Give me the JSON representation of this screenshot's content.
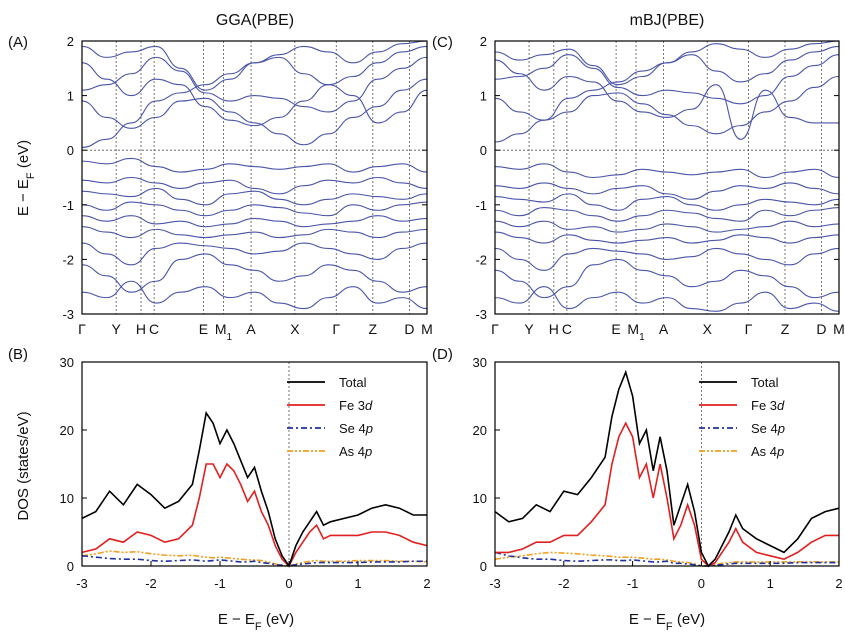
{
  "figure": {
    "panel_titles": [
      "GGA(PBE)",
      "mBJ(PBE)"
    ],
    "panel_labels": [
      "(A)",
      "(B)",
      "(C)",
      "(D)"
    ],
    "band_ylabel_main": "E − E",
    "band_ylabel_sub": "F",
    "band_ylabel_unit": " (eV)",
    "dos_ylabel": "DOS (states/eV)",
    "dos_xlabel_main": "E − E",
    "dos_xlabel_sub": "F",
    "dos_xlabel_unit": " (eV)"
  },
  "chart_data": [
    {
      "panel": "A",
      "type": "line",
      "title": "GGA(PBE)",
      "ylabel": "E − EF (eV)",
      "ylim": [
        -3,
        2
      ],
      "yticks": [
        -3,
        -2,
        -1,
        0,
        1,
        2
      ],
      "kpoints": [
        {
          "label": "Γ",
          "sub": "",
          "pos": 0
        },
        {
          "label": "Y",
          "sub": "",
          "pos": 0.099
        },
        {
          "label": "H",
          "sub": "",
          "pos": 0.171
        },
        {
          "label": "C",
          "sub": "",
          "pos": 0.209
        },
        {
          "label": "E",
          "sub": "",
          "pos": 0.352
        },
        {
          "label": "M",
          "sub": "1",
          "pos": 0.41
        },
        {
          "label": "A",
          "sub": "",
          "pos": 0.49
        },
        {
          "label": "X",
          "sub": "",
          "pos": 0.617
        },
        {
          "label": "Γ",
          "sub": "",
          "pos": 0.737
        },
        {
          "label": "Z",
          "sub": "",
          "pos": 0.843
        },
        {
          "label": "D",
          "sub": "",
          "pos": 0.949
        },
        {
          "label": "M",
          "sub": "",
          "pos": 1
        }
      ],
      "grid": "dotted vertical lines at k-points",
      "band_color": "#4a55a8",
      "bands": [
        [
          0.05,
          0.2,
          0.5,
          0.9,
          1.05,
          1.2,
          1.4,
          1.6,
          1.75,
          1.9,
          1.8,
          1.6,
          1.8,
          1.95,
          2.0
        ],
        [
          1.9,
          1.7,
          1.8,
          1.9,
          1.5,
          1.1,
          1.3,
          1.6,
          1.7,
          1.4,
          1.2,
          1.35,
          1.6,
          1.8,
          1.9
        ],
        [
          1.1,
          1.2,
          1.4,
          1.7,
          1.45,
          1.05,
          0.9,
          1.0,
          0.95,
          0.8,
          0.7,
          0.9,
          1.3,
          1.5,
          1.7
        ],
        [
          0.9,
          0.6,
          0.4,
          0.6,
          0.9,
          0.95,
          0.7,
          0.5,
          0.3,
          0.1,
          0.3,
          0.6,
          0.8,
          1.1,
          1.3
        ],
        [
          1.6,
          1.3,
          1.0,
          1.3,
          1.2,
          0.8,
          0.55,
          0.45,
          0.6,
          0.9,
          1.2,
          1.0,
          0.5,
          0.7,
          1.1
        ],
        [
          -0.2,
          -0.25,
          -0.15,
          -0.3,
          -0.4,
          -0.35,
          -0.25,
          -0.3,
          -0.35,
          -0.3,
          -0.25,
          -0.4,
          -0.3,
          -0.25,
          -0.4
        ],
        [
          -0.55,
          -0.6,
          -0.5,
          -0.6,
          -0.7,
          -0.6,
          -0.55,
          -0.7,
          -0.8,
          -0.65,
          -0.55,
          -0.6,
          -0.5,
          -0.6,
          -0.7
        ],
        [
          -0.75,
          -0.8,
          -0.85,
          -0.7,
          -0.9,
          -1.0,
          -0.8,
          -0.75,
          -0.9,
          -1.0,
          -0.9,
          -0.8,
          -0.85,
          -0.9,
          -0.8
        ],
        [
          -1.0,
          -1.1,
          -0.95,
          -1.0,
          -1.1,
          -1.2,
          -1.1,
          -1.0,
          -1.05,
          -1.15,
          -1.2,
          -1.0,
          -1.1,
          -1.0,
          -0.95
        ],
        [
          -1.2,
          -1.3,
          -1.2,
          -1.35,
          -1.3,
          -1.4,
          -1.35,
          -1.25,
          -1.3,
          -1.4,
          -1.35,
          -1.3,
          -1.2,
          -1.3,
          -1.25
        ],
        [
          -1.4,
          -1.5,
          -1.6,
          -1.45,
          -1.55,
          -1.6,
          -1.55,
          -1.5,
          -1.6,
          -1.55,
          -1.45,
          -1.5,
          -1.6,
          -1.5,
          -1.45
        ],
        [
          -1.7,
          -1.9,
          -2.1,
          -1.8,
          -1.7,
          -1.75,
          -1.8,
          -1.9,
          -1.85,
          -1.7,
          -1.8,
          -1.9,
          -2.0,
          -1.8,
          -1.7
        ],
        [
          -2.1,
          -2.3,
          -2.6,
          -2.4,
          -2.0,
          -1.9,
          -2.1,
          -2.2,
          -2.4,
          -2.3,
          -2.1,
          -2.2,
          -2.4,
          -2.6,
          -2.5
        ],
        [
          -2.6,
          -2.7,
          -2.4,
          -2.8,
          -2.6,
          -2.5,
          -2.7,
          -2.6,
          -2.8,
          -2.9,
          -2.7,
          -2.5,
          -2.8,
          -2.7,
          -2.9
        ]
      ]
    },
    {
      "panel": "C",
      "type": "line",
      "title": "mBJ(PBE)",
      "ylabel": "",
      "ylim": [
        -3,
        2
      ],
      "yticks": [
        -3,
        -2,
        -1,
        0,
        1,
        2
      ],
      "kpoints": [
        {
          "label": "Γ",
          "sub": "",
          "pos": 0
        },
        {
          "label": "Y",
          "sub": "",
          "pos": 0.099
        },
        {
          "label": "H",
          "sub": "",
          "pos": 0.171
        },
        {
          "label": "C",
          "sub": "",
          "pos": 0.209
        },
        {
          "label": "E",
          "sub": "",
          "pos": 0.352
        },
        {
          "label": "M",
          "sub": "1",
          "pos": 0.41
        },
        {
          "label": "A",
          "sub": "",
          "pos": 0.49
        },
        {
          "label": "X",
          "sub": "",
          "pos": 0.617
        },
        {
          "label": "Γ",
          "sub": "",
          "pos": 0.737
        },
        {
          "label": "Z",
          "sub": "",
          "pos": 0.843
        },
        {
          "label": "D",
          "sub": "",
          "pos": 0.949
        },
        {
          "label": "M",
          "sub": "",
          "pos": 1
        }
      ],
      "grid": "dotted vertical lines at k-points",
      "band_color": "#4a55a8",
      "bands": [
        [
          0.15,
          0.3,
          0.55,
          0.95,
          1.1,
          1.25,
          1.45,
          1.6,
          1.8,
          1.95,
          1.85,
          1.7,
          1.85,
          1.95,
          2.0
        ],
        [
          1.8,
          1.65,
          1.75,
          1.85,
          1.55,
          1.2,
          1.35,
          1.6,
          1.75,
          1.45,
          1.25,
          1.4,
          1.65,
          1.8,
          1.9
        ],
        [
          1.3,
          1.35,
          1.5,
          1.75,
          1.5,
          1.15,
          1.0,
          1.1,
          1.05,
          0.95,
          0.85,
          1.0,
          1.35,
          1.55,
          1.75
        ],
        [
          0.95,
          0.7,
          0.55,
          0.7,
          1.0,
          1.05,
          0.85,
          0.65,
          0.45,
          0.3,
          0.45,
          0.7,
          0.9,
          1.15,
          1.35
        ],
        [
          1.65,
          1.4,
          1.1,
          1.35,
          1.25,
          0.9,
          0.7,
          0.6,
          0.75,
          1.2,
          0.2,
          1.1,
          0.6,
          0.5,
          0.5
        ],
        [
          -0.3,
          -0.35,
          -0.25,
          -0.4,
          -0.5,
          -0.45,
          -0.35,
          -0.4,
          -0.45,
          -0.4,
          -0.35,
          -0.5,
          -0.4,
          -0.35,
          -0.5
        ],
        [
          -0.65,
          -0.7,
          -0.6,
          -0.7,
          -0.8,
          -0.7,
          -0.65,
          -0.8,
          -0.9,
          -0.75,
          -0.65,
          -0.7,
          -0.6,
          -0.7,
          -0.8
        ],
        [
          -0.85,
          -0.9,
          -0.95,
          -0.8,
          -1.0,
          -1.1,
          -0.9,
          -0.85,
          -1.0,
          -1.1,
          -1.0,
          -0.9,
          -0.95,
          -1.0,
          -0.9
        ],
        [
          -1.1,
          -1.2,
          -1.05,
          -1.1,
          -1.2,
          -1.3,
          -1.2,
          -1.1,
          -1.15,
          -1.25,
          -1.3,
          -1.1,
          -1.2,
          -1.1,
          -1.05
        ],
        [
          -1.3,
          -1.4,
          -1.3,
          -1.45,
          -1.4,
          -1.5,
          -1.45,
          -1.35,
          -1.4,
          -1.5,
          -1.45,
          -1.4,
          -1.3,
          -1.4,
          -1.35
        ],
        [
          -1.5,
          -1.6,
          -1.7,
          -1.55,
          -1.65,
          -1.7,
          -1.65,
          -1.6,
          -1.7,
          -1.65,
          -1.55,
          -1.6,
          -1.7,
          -1.6,
          -1.55
        ],
        [
          -1.8,
          -2.0,
          -2.2,
          -1.9,
          -1.8,
          -1.85,
          -1.9,
          -2.0,
          -1.95,
          -1.8,
          -1.9,
          -2.0,
          -2.1,
          -1.9,
          -1.8
        ],
        [
          -2.2,
          -2.4,
          -2.7,
          -2.5,
          -2.1,
          -2.0,
          -2.2,
          -2.3,
          -2.5,
          -2.4,
          -2.2,
          -2.3,
          -2.5,
          -2.7,
          -2.6
        ],
        [
          -2.7,
          -2.8,
          -2.5,
          -2.9,
          -2.7,
          -2.6,
          -2.8,
          -2.7,
          -2.9,
          -2.95,
          -2.8,
          -2.6,
          -2.9,
          -2.8,
          -2.95
        ]
      ]
    },
    {
      "panel": "B",
      "type": "line",
      "xlabel": "E − EF (eV)",
      "ylabel": "DOS (states/eV)",
      "xlim": [
        -3,
        2
      ],
      "ylim": [
        0,
        30
      ],
      "xticks": [
        -3,
        -2,
        -1,
        0,
        1,
        2
      ],
      "yticks": [
        0,
        10,
        20,
        30
      ],
      "legend_position": "top-right",
      "x": [
        -3,
        -2.8,
        -2.6,
        -2.4,
        -2.2,
        -2.0,
        -1.8,
        -1.6,
        -1.4,
        -1.3,
        -1.2,
        -1.1,
        -1.0,
        -0.9,
        -0.8,
        -0.7,
        -0.6,
        -0.5,
        -0.4,
        -0.3,
        -0.2,
        -0.1,
        0.0,
        0.1,
        0.2,
        0.3,
        0.4,
        0.5,
        0.6,
        0.8,
        1.0,
        1.2,
        1.4,
        1.6,
        1.8,
        2.0
      ],
      "series": [
        {
          "name": "Total",
          "name_main": "Total",
          "name_sub": "",
          "color": "#000000",
          "dash": "",
          "values": [
            7.0,
            8,
            11,
            9,
            12,
            10.5,
            8.5,
            9.5,
            12,
            17,
            22.5,
            21,
            18,
            20,
            18,
            15.5,
            13,
            14.5,
            11,
            8,
            4,
            1.5,
            0,
            3,
            5,
            6.5,
            8,
            6,
            6.5,
            7,
            7.5,
            8.5,
            9,
            8.5,
            7.5,
            7.5
          ]
        },
        {
          "name": "Fe 3d",
          "name_main": "Fe 3",
          "name_sub": "d",
          "color": "#e02020",
          "dash": "",
          "values": [
            2.0,
            2.5,
            4,
            3.5,
            5,
            4.5,
            3.5,
            4,
            6,
            10,
            15,
            15,
            13,
            15,
            14,
            12,
            9.5,
            11,
            8,
            6,
            3,
            1,
            0,
            2,
            3.5,
            5,
            6,
            4,
            4.5,
            4.5,
            4.5,
            5,
            5,
            4.5,
            3.5,
            3
          ]
        },
        {
          "name": "Se 4p",
          "name_main": "Se 4",
          "name_sub": "p",
          "color": "#2030a0",
          "dash": "6,3,2,3",
          "values": [
            1.5,
            1.3,
            1.1,
            1.0,
            1.0,
            0.8,
            0.7,
            0.8,
            0.9,
            0.8,
            0.7,
            0.8,
            0.9,
            0.8,
            0.7,
            0.6,
            0.6,
            0.7,
            0.5,
            0.4,
            0.2,
            0.1,
            0,
            0.2,
            0.3,
            0.4,
            0.5,
            0.5,
            0.5,
            0.5,
            0.5,
            0.6,
            0.6,
            0.6,
            0.7,
            0.7
          ]
        },
        {
          "name": "As 4p",
          "name_main": "As 4",
          "name_sub": "p",
          "color": "#f0a020",
          "dash": "6,2,2,2,2,2",
          "values": [
            1.5,
            1.8,
            2.2,
            2.0,
            2.1,
            1.8,
            1.6,
            1.5,
            1.6,
            1.4,
            1.3,
            1.2,
            1.3,
            1.2,
            1.1,
            1.0,
            0.9,
            0.9,
            0.8,
            0.6,
            0.3,
            0.1,
            0,
            0.3,
            0.5,
            0.7,
            0.8,
            0.7,
            0.7,
            0.7,
            0.8,
            0.8,
            0.8,
            0.7,
            0.7,
            0.6
          ]
        }
      ]
    },
    {
      "panel": "D",
      "type": "line",
      "xlabel": "E − EF (eV)",
      "ylabel": "",
      "xlim": [
        -3,
        2
      ],
      "ylim": [
        0,
        30
      ],
      "xticks": [
        -3,
        -2,
        -1,
        0,
        1,
        2
      ],
      "yticks": [
        0,
        10,
        20,
        30
      ],
      "legend_position": "top-right",
      "x": [
        -3,
        -2.8,
        -2.6,
        -2.4,
        -2.2,
        -2.0,
        -1.8,
        -1.6,
        -1.4,
        -1.3,
        -1.2,
        -1.1,
        -1.0,
        -0.9,
        -0.8,
        -0.7,
        -0.6,
        -0.5,
        -0.4,
        -0.3,
        -0.2,
        -0.1,
        0.0,
        0.1,
        0.2,
        0.3,
        0.4,
        0.5,
        0.6,
        0.8,
        1.0,
        1.2,
        1.4,
        1.6,
        1.8,
        2.0
      ],
      "series": [
        {
          "name": "Total",
          "name_main": "Total",
          "name_sub": "",
          "color": "#000000",
          "dash": "",
          "values": [
            8.0,
            6.5,
            7,
            9,
            8,
            11,
            10.5,
            13,
            16,
            22,
            26,
            28.5,
            25,
            18,
            20,
            14,
            19,
            14,
            6,
            9,
            12,
            8,
            2,
            0,
            1,
            3,
            5,
            7.5,
            5.5,
            4,
            3,
            2,
            4,
            7,
            8,
            8.5
          ]
        },
        {
          "name": "Fe 3d",
          "name_main": "Fe 3",
          "name_sub": "d",
          "color": "#e02020",
          "dash": "",
          "values": [
            2.0,
            2.0,
            2.5,
            3.5,
            3.5,
            4.5,
            4.5,
            6.5,
            9,
            15,
            19,
            21,
            19,
            13,
            15,
            10,
            15,
            10,
            4,
            6,
            9,
            6,
            1,
            0,
            0.5,
            2,
            3.5,
            5.5,
            3.5,
            2,
            1.5,
            1,
            2,
            3.5,
            4.5,
            4.5
          ]
        },
        {
          "name": "Se 4p",
          "name_main": "Se 4",
          "name_sub": "p",
          "color": "#2030a0",
          "dash": "6,3,2,3",
          "values": [
            2.0,
            1.5,
            1.2,
            1.0,
            1.0,
            0.8,
            0.7,
            0.8,
            0.9,
            0.9,
            0.8,
            0.8,
            0.9,
            0.8,
            0.7,
            0.6,
            0.6,
            0.7,
            0.4,
            0.4,
            0.3,
            0.2,
            0,
            0,
            0.1,
            0.2,
            0.3,
            0.4,
            0.4,
            0.4,
            0.4,
            0.4,
            0.5,
            0.5,
            0.5,
            0.5
          ]
        },
        {
          "name": "As 4p",
          "name_main": "As 4",
          "name_sub": "p",
          "color": "#f0a020",
          "dash": "6,2,2,2,2,2",
          "values": [
            1.0,
            1.3,
            1.5,
            1.8,
            2.0,
            1.9,
            1.8,
            1.6,
            1.5,
            1.4,
            1.3,
            1.3,
            1.3,
            1.2,
            1.1,
            1.0,
            1.0,
            0.9,
            0.7,
            0.6,
            0.5,
            0.3,
            0,
            0,
            0.2,
            0.4,
            0.5,
            0.6,
            0.6,
            0.6,
            0.6,
            0.6,
            0.6,
            0.6,
            0.6,
            0.6
          ]
        }
      ]
    }
  ]
}
